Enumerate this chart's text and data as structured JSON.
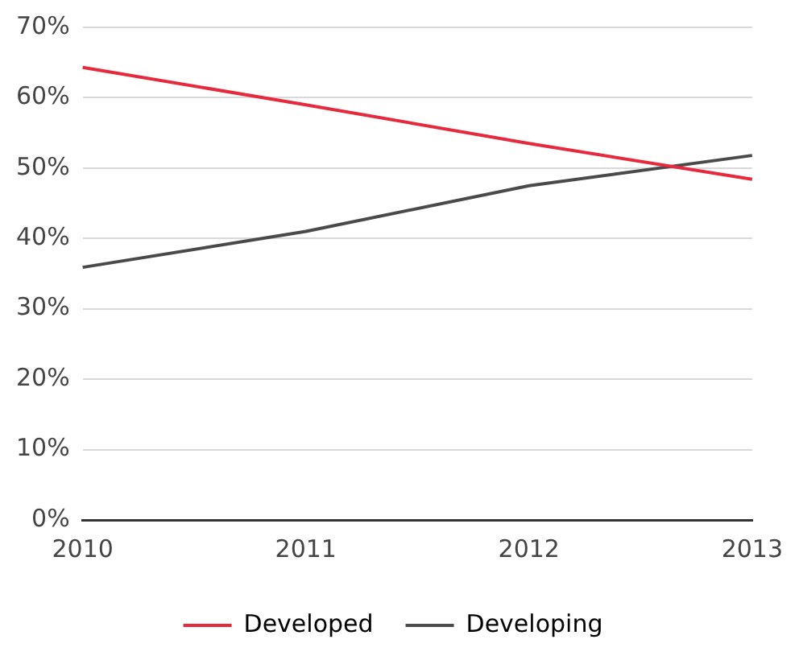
{
  "chart_data": {
    "type": "line",
    "categories": [
      "2010",
      "2011",
      "2012",
      "2013"
    ],
    "series": [
      {
        "name": "Developed",
        "color": "#e8283c",
        "values": [
          64.3,
          59,
          53.5,
          48.4
        ]
      },
      {
        "name": "Developing",
        "color": "#4a4a4a",
        "values": [
          35.9,
          41,
          47.5,
          51.8
        ]
      }
    ],
    "ylim": [
      0,
      70
    ],
    "yticks": [
      {
        "value": 0,
        "label": "0%"
      },
      {
        "value": 10,
        "label": "10%"
      },
      {
        "value": 20,
        "label": "20%"
      },
      {
        "value": 30,
        "label": "30%"
      },
      {
        "value": 40,
        "label": "40%"
      },
      {
        "value": 50,
        "label": "50%"
      },
      {
        "value": 60,
        "label": "60%"
      },
      {
        "value": 70,
        "label": "70%"
      }
    ],
    "grid": "y",
    "legend": "bottom",
    "marker": "none",
    "line_style": "solid"
  }
}
